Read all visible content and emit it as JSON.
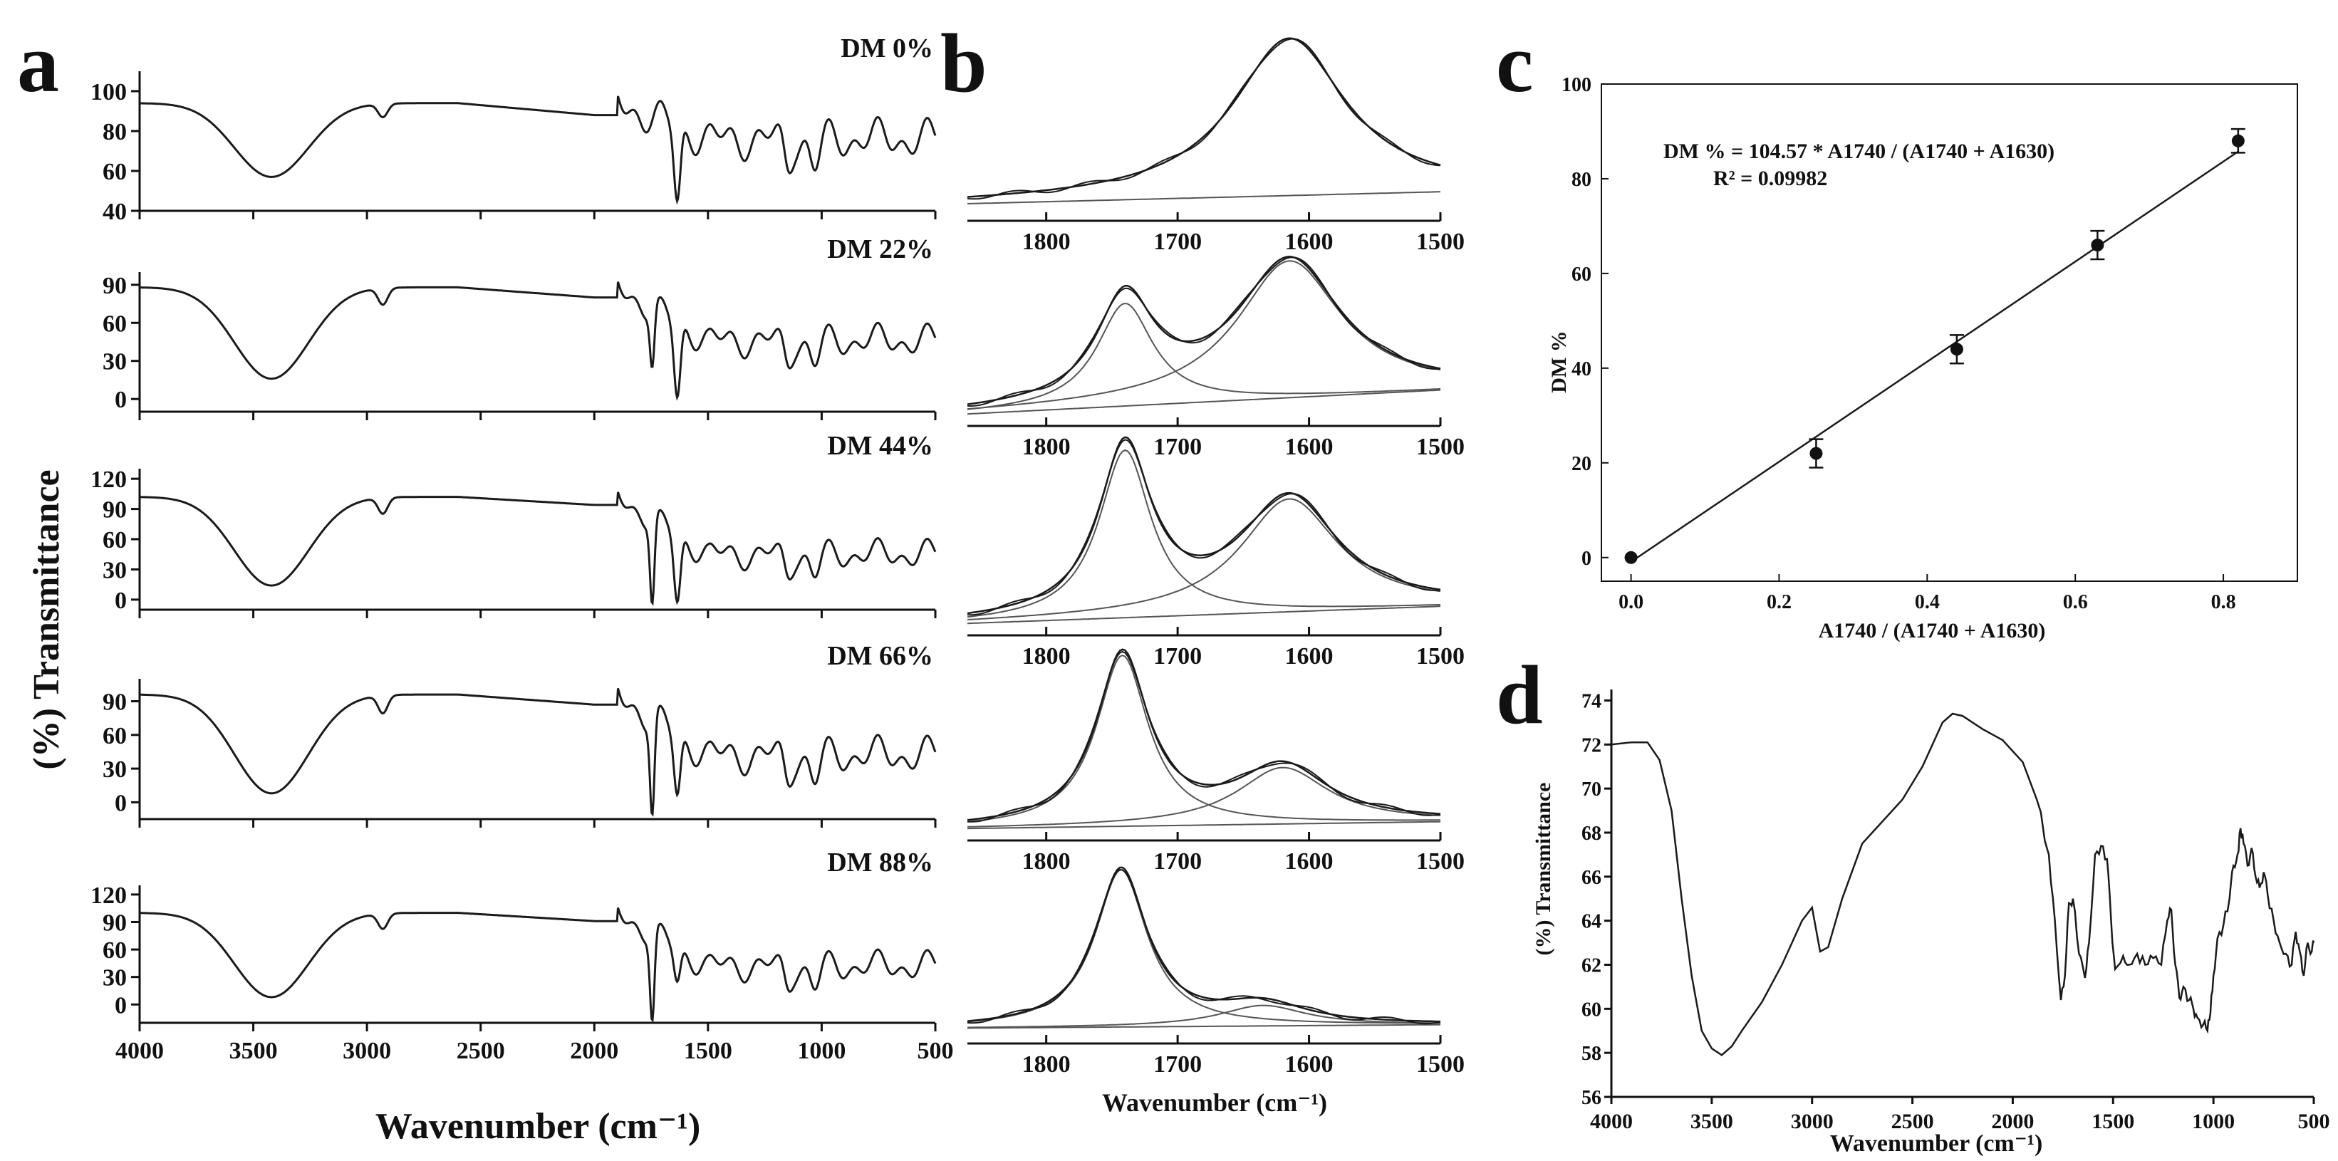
{
  "panel_labels": {
    "a": "a",
    "b": "b",
    "c": "c",
    "d": "d"
  },
  "colors": {
    "ink": "#111111",
    "line": "#1a1a1a",
    "fit": "#555555",
    "background": "#ffffff"
  },
  "chart_data": [
    {
      "id": "a",
      "type": "line",
      "title": "",
      "xlabel": "Wavenumber (cm⁻¹)",
      "ylabel": "(%) Transmittance",
      "xlim": [
        4000,
        500
      ],
      "x_ticks": [
        4000,
        3500,
        3000,
        2500,
        2000,
        1500,
        1000,
        500
      ],
      "x_tick_labels": [
        "4000",
        "3500",
        "3000",
        "2500",
        "2000",
        "1500",
        "1000",
        "500"
      ],
      "subplots": [
        {
          "label": "DM 0%",
          "ylim": [
            40,
            110
          ],
          "y_ticks": [
            40,
            60,
            80,
            100
          ],
          "spectrum": {
            "base": 94,
            "shoulder_drop": 6,
            "oh_depth": 37,
            "c740_depth": 0,
            "c1630_depth": 38,
            "fp_mid": 76,
            "fp_amp": 11
          }
        },
        {
          "label": "DM 22%",
          "ylim": [
            -10,
            100
          ],
          "y_ticks": [
            0,
            30,
            60,
            90
          ],
          "spectrum": {
            "base": 88,
            "shoulder_drop": 8,
            "oh_depth": 72,
            "c740_depth": 45,
            "c1630_depth": 60,
            "fp_mid": 46,
            "fp_amp": 14
          }
        },
        {
          "label": "DM 44%",
          "ylim": [
            -10,
            130
          ],
          "y_ticks": [
            0,
            30,
            60,
            90,
            120
          ],
          "spectrum": {
            "base": 102,
            "shoulder_drop": 8,
            "oh_depth": 88,
            "c740_depth": 82,
            "c1630_depth": 68,
            "fp_mid": 45,
            "fp_amp": 16
          }
        },
        {
          "label": "DM 66%",
          "ylim": [
            -15,
            110
          ],
          "y_ticks": [
            0,
            30,
            60,
            90
          ],
          "spectrum": {
            "base": 96,
            "shoulder_drop": 9,
            "oh_depth": 88,
            "c740_depth": 84,
            "c1630_depth": 55,
            "fp_mid": 42,
            "fp_amp": 18
          }
        },
        {
          "label": "DM 88%",
          "ylim": [
            -20,
            130
          ],
          "y_ticks": [
            0,
            30,
            60,
            90,
            120
          ],
          "spectrum": {
            "base": 100,
            "shoulder_drop": 9,
            "oh_depth": 92,
            "c740_depth": 93,
            "c1630_depth": 38,
            "fp_mid": 42,
            "fp_amp": 18
          }
        }
      ]
    },
    {
      "id": "b",
      "type": "line",
      "title": "",
      "xlabel": "Wavenumber (cm⁻¹)",
      "ylabel": "",
      "xlim": [
        1860,
        1500
      ],
      "x_ticks": [
        1800,
        1700,
        1600,
        1500
      ],
      "x_tick_labels": [
        "1800",
        "1700",
        "1600",
        "1500"
      ],
      "subplots": [
        {
          "label": "DM 0%",
          "peak_1740": {
            "center": 1740,
            "height": 0,
            "width": 28
          },
          "peak_1630": {
            "center": 1615,
            "height": 0.92,
            "width": 52
          },
          "baseline": [
            0.05,
            0.12
          ]
        },
        {
          "label": "DM 22%",
          "peak_1740": {
            "center": 1740,
            "height": 0.6,
            "width": 26
          },
          "peak_1630": {
            "center": 1615,
            "height": 0.8,
            "width": 48
          },
          "baseline": [
            0.02,
            0.16
          ]
        },
        {
          "label": "DM 44%",
          "peak_1740": {
            "center": 1740,
            "height": 0.98,
            "width": 24
          },
          "peak_1630": {
            "center": 1615,
            "height": 0.66,
            "width": 45
          },
          "baseline": [
            0.02,
            0.12
          ]
        },
        {
          "label": "DM 66%",
          "peak_1740": {
            "center": 1742,
            "height": 1.0,
            "width": 24
          },
          "peak_1630": {
            "center": 1620,
            "height": 0.33,
            "width": 42
          },
          "baseline": [
            0.02,
            0.06
          ]
        },
        {
          "label": "DM 88%",
          "peak_1740": {
            "center": 1743,
            "height": 0.92,
            "width": 24
          },
          "peak_1630": {
            "center": 1635,
            "height": 0.12,
            "width": 40
          },
          "baseline": [
            0.04,
            0.06
          ]
        }
      ]
    },
    {
      "id": "c",
      "type": "scatter",
      "title": "",
      "xlabel": "A1740 / (A1740 + A1630)",
      "ylabel": "DM %",
      "xlim": [
        -0.04,
        0.9
      ],
      "ylim": [
        -5,
        100
      ],
      "x_ticks": [
        0.0,
        0.2,
        0.4,
        0.6,
        0.8
      ],
      "x_tick_labels": [
        "0.0",
        "0.2",
        "0.4",
        "0.6",
        "0.8"
      ],
      "y_ticks": [
        0,
        20,
        40,
        60,
        80,
        100
      ],
      "y_tick_labels": [
        "0",
        "20",
        "40",
        "60",
        "80",
        "100"
      ],
      "points": [
        {
          "x": 0.0,
          "y": 0,
          "err": 0
        },
        {
          "x": 0.25,
          "y": 22,
          "err": 3
        },
        {
          "x": 0.44,
          "y": 44,
          "err": 3
        },
        {
          "x": 0.63,
          "y": 66,
          "err": 3
        },
        {
          "x": 0.82,
          "y": 88,
          "err": 2.5
        }
      ],
      "fit": {
        "slope": 104.57,
        "intercept": 0,
        "x_range": [
          0.0,
          0.82
        ]
      },
      "equation": "DM % = 104.57 * A1740 / (A1740 + A1630)",
      "r_squared": "R² = 0.09982"
    },
    {
      "id": "d",
      "type": "line",
      "title": "",
      "xlabel": "Wavenumber (cm⁻¹)",
      "ylabel": "(%) Transmittance",
      "xlim": [
        4000,
        500
      ],
      "ylim": [
        56,
        74.5
      ],
      "x_ticks": [
        4000,
        3500,
        3000,
        2500,
        2000,
        1500,
        1000,
        500
      ],
      "x_tick_labels": [
        "4000",
        "3500",
        "3000",
        "2500",
        "2000",
        "1500",
        "1000",
        "500"
      ],
      "y_ticks": [
        56,
        58,
        60,
        62,
        64,
        66,
        68,
        70,
        72,
        74
      ],
      "y_tick_labels": [
        "56",
        "58",
        "60",
        "62",
        "64",
        "66",
        "68",
        "70",
        "72",
        "74"
      ],
      "curve": [
        [
          4000,
          72.0
        ],
        [
          3900,
          72.1
        ],
        [
          3820,
          72.1
        ],
        [
          3760,
          71.3
        ],
        [
          3700,
          69.0
        ],
        [
          3650,
          65.0
        ],
        [
          3600,
          61.5
        ],
        [
          3550,
          59.0
        ],
        [
          3500,
          58.2
        ],
        [
          3450,
          57.9
        ],
        [
          3400,
          58.3
        ],
        [
          3350,
          59.0
        ],
        [
          3250,
          60.3
        ],
        [
          3150,
          62.0
        ],
        [
          3050,
          64.0
        ],
        [
          3000,
          64.6
        ],
        [
          2960,
          62.6
        ],
        [
          2920,
          62.8
        ],
        [
          2850,
          65.0
        ],
        [
          2750,
          67.5
        ],
        [
          2650,
          68.5
        ],
        [
          2550,
          69.5
        ],
        [
          2450,
          71.0
        ],
        [
          2350,
          73.0
        ],
        [
          2300,
          73.4
        ],
        [
          2250,
          73.3
        ],
        [
          2150,
          72.7
        ],
        [
          2050,
          72.2
        ],
        [
          1950,
          71.2
        ],
        [
          1880,
          69.5
        ],
        [
          1820,
          67.0
        ],
        [
          1790,
          64.0
        ],
        [
          1760,
          60.4
        ],
        [
          1740,
          61.5
        ],
        [
          1720,
          64.8
        ],
        [
          1700,
          65.0
        ],
        [
          1670,
          62.5
        ],
        [
          1640,
          61.4
        ],
        [
          1620,
          63.0
        ],
        [
          1590,
          67.0
        ],
        [
          1560,
          67.4
        ],
        [
          1530,
          66.8
        ],
        [
          1510,
          64.0
        ],
        [
          1490,
          61.8
        ],
        [
          1450,
          62.4
        ],
        [
          1420,
          62.0
        ],
        [
          1380,
          62.5
        ],
        [
          1340,
          62.0
        ],
        [
          1300,
          62.3
        ],
        [
          1260,
          62.0
        ],
        [
          1230,
          64.0
        ],
        [
          1210,
          64.5
        ],
        [
          1190,
          62.0
        ],
        [
          1170,
          60.5
        ],
        [
          1150,
          61.0
        ],
        [
          1120,
          60.4
        ],
        [
          1100,
          60.0
        ],
        [
          1080,
          59.6
        ],
        [
          1050,
          59.3
        ],
        [
          1030,
          59.0
        ],
        [
          1015,
          59.8
        ],
        [
          1000,
          61.5
        ],
        [
          980,
          63.2
        ],
        [
          950,
          63.8
        ],
        [
          920,
          65.0
        ],
        [
          900,
          66.5
        ],
        [
          880,
          67.0
        ],
        [
          865,
          68.2
        ],
        [
          850,
          67.5
        ],
        [
          830,
          66.5
        ],
        [
          810,
          67.3
        ],
        [
          790,
          66.0
        ],
        [
          770,
          65.5
        ],
        [
          750,
          66.2
        ],
        [
          730,
          65.2
        ],
        [
          700,
          64.0
        ],
        [
          670,
          63.0
        ],
        [
          640,
          62.5
        ],
        [
          610,
          62.0
        ],
        [
          590,
          63.5
        ],
        [
          570,
          62.6
        ],
        [
          550,
          61.5
        ],
        [
          530,
          63.0
        ],
        [
          510,
          62.6
        ],
        [
          500,
          63.0
        ]
      ]
    }
  ]
}
